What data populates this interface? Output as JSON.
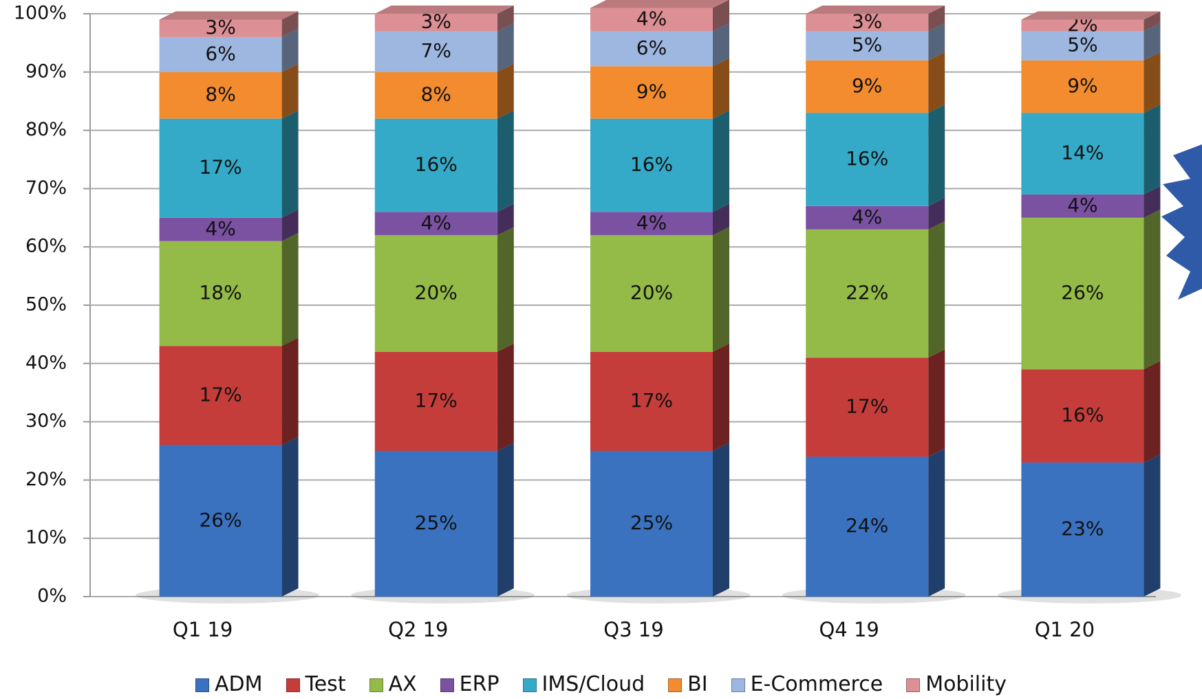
{
  "chart_data": {
    "type": "stacked_bar",
    "categories": [
      "Q1 19",
      "Q2 19",
      "Q3 19",
      "Q4 19",
      "Q1 20"
    ],
    "series": [
      {
        "name": "ADM",
        "color": "#3a72c0",
        "values": [
          26,
          25,
          25,
          24,
          23
        ],
        "value_labels": [
          "26%",
          "25%",
          "25%",
          "24%",
          "23%"
        ]
      },
      {
        "name": "Test",
        "color": "#c43d3a",
        "values": [
          17,
          17,
          17,
          17,
          16
        ],
        "value_labels": [
          "17%",
          "17%",
          "17%",
          "17%",
          "16%"
        ]
      },
      {
        "name": "AX",
        "color": "#94ba48",
        "values": [
          18,
          20,
          20,
          22,
          26
        ],
        "value_labels": [
          "18%",
          "20%",
          "20%",
          "22%",
          "26%"
        ]
      },
      {
        "name": "ERP",
        "color": "#7b51a2",
        "values": [
          4,
          4,
          4,
          4,
          4
        ],
        "value_labels": [
          "4%",
          "4%",
          "4%",
          "4%",
          "4%"
        ]
      },
      {
        "name": "IMS/Cloud",
        "color": "#35aac8",
        "values": [
          17,
          16,
          16,
          16,
          14
        ],
        "value_labels": [
          "17%",
          "16%",
          "16%",
          "16%",
          "14%"
        ]
      },
      {
        "name": "BI",
        "color": "#f38c2e",
        "values": [
          8,
          8,
          9,
          9,
          9
        ],
        "value_labels": [
          "8%",
          "8%",
          "9%",
          "9%",
          "9%"
        ]
      },
      {
        "name": "E-Commerce",
        "color": "#9db7e0",
        "values": [
          6,
          7,
          6,
          5,
          5
        ],
        "value_labels": [
          "6%",
          "7%",
          "6%",
          "5%",
          "5%"
        ]
      },
      {
        "name": "Mobility",
        "color": "#dc8f94",
        "values": [
          3,
          3,
          4,
          3,
          2
        ],
        "value_labels": [
          "3%",
          "3%",
          "4%",
          "3%",
          "2%"
        ]
      }
    ],
    "ylim": [
      0,
      100
    ],
    "yticks": [
      {
        "value": 0,
        "label": "0%"
      },
      {
        "value": 10,
        "label": "10%"
      },
      {
        "value": 20,
        "label": "20%"
      },
      {
        "value": 30,
        "label": "30%"
      },
      {
        "value": 40,
        "label": "40%"
      },
      {
        "value": 50,
        "label": "50%"
      },
      {
        "value": 60,
        "label": "60%"
      },
      {
        "value": 70,
        "label": "70%"
      },
      {
        "value": 80,
        "label": "80%"
      },
      {
        "value": 90,
        "label": "90%"
      },
      {
        "value": 100,
        "label": "100%"
      }
    ],
    "grid": true,
    "legend": "bottom"
  }
}
